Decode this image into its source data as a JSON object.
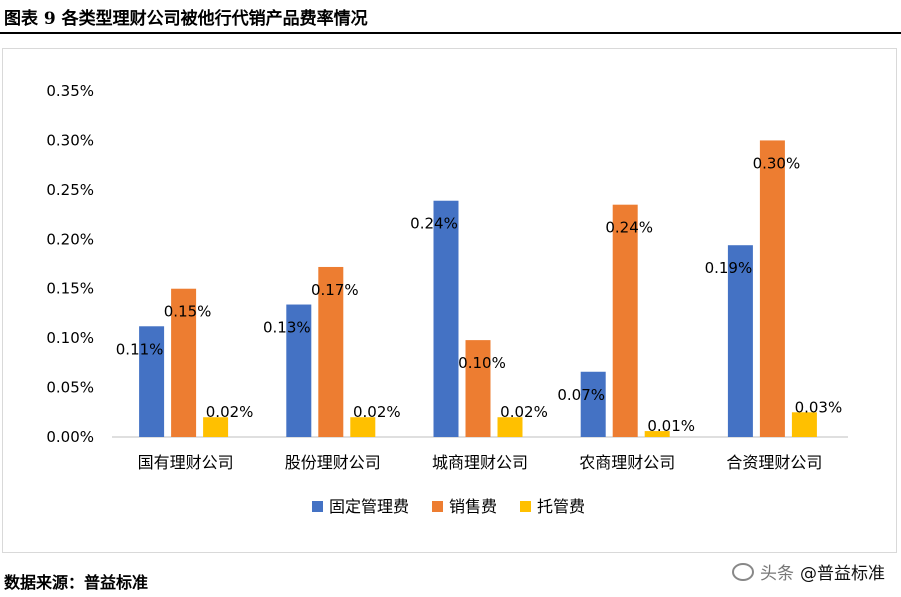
{
  "title": "图表 9  各类型理财公司被他行代销产品费率情况",
  "source": "数据来源：普益标准",
  "watermark": {
    "prefix": "头条",
    "author": "@普益标准",
    "icon": "wechat-icon"
  },
  "colors": {
    "固定管理费": "#4472C4",
    "销售费": "#ED7D31",
    "托管费": "#FFC000",
    "gridline": "#d9d9d9",
    "axis": "#bfbfbf"
  },
  "chart_data": {
    "type": "bar",
    "title": "",
    "xlabel": "",
    "ylabel": "",
    "ylim": [
      0,
      0.35
    ],
    "y_tick_values": [
      0,
      0.05,
      0.1,
      0.15,
      0.2,
      0.25,
      0.3,
      0.35
    ],
    "y_tick_labels": [
      "0.00%",
      "0.05%",
      "0.10%",
      "0.15%",
      "0.20%",
      "0.25%",
      "0.30%",
      "0.35%"
    ],
    "gridlines": false,
    "legend_position": "bottom",
    "categories": [
      "国有理财公司",
      "股份理财公司",
      "城商理财公司",
      "农商理财公司",
      "合资理财公司"
    ],
    "series": [
      {
        "name": "固定管理费",
        "values": [
          0.112,
          0.134,
          0.239,
          0.066,
          0.194
        ],
        "labels": [
          "0.11%",
          "0.13%",
          "0.24%",
          "0.07%",
          "0.19%"
        ]
      },
      {
        "name": "销售费",
        "values": [
          0.15,
          0.172,
          0.098,
          0.235,
          0.3
        ],
        "labels": [
          "0.15%",
          "0.17%",
          "0.10%",
          "0.24%",
          "0.30%"
        ]
      },
      {
        "name": "托管费",
        "values": [
          0.02,
          0.02,
          0.02,
          0.006,
          0.025
        ],
        "labels": [
          "0.02%",
          "0.02%",
          "0.02%",
          "0.01%",
          "0.03%"
        ]
      }
    ]
  }
}
